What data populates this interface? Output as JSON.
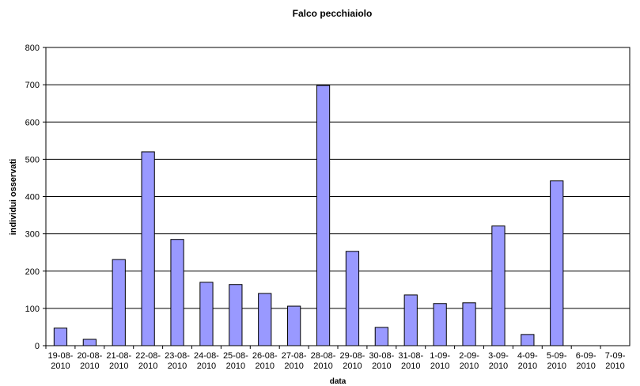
{
  "chart_data": {
    "type": "bar",
    "title": "Falco pecchiaiolo",
    "xlabel": "data",
    "ylabel": "individui osservati",
    "categories": [
      "19-08-2010",
      "20-08-2010",
      "21-08-2010",
      "22-08-2010",
      "23-08-2010",
      "24-08-2010",
      "25-08-2010",
      "26-08-2010",
      "27-08-2010",
      "28-08-2010",
      "29-08-2010",
      "30-08-2010",
      "31-08-2010",
      "1-09-2010",
      "2-09-2010",
      "3-09-2010",
      "4-09-2010",
      "5-09-2010",
      "6-09-2010",
      "7-09-2010"
    ],
    "values": [
      47,
      17,
      231,
      520,
      285,
      170,
      164,
      140,
      106,
      698,
      253,
      49,
      136,
      113,
      115,
      321,
      30,
      442,
      0,
      0
    ],
    "color": "#9999ff",
    "ylim": [
      0,
      800
    ],
    "yticks": [
      0,
      100,
      200,
      300,
      400,
      500,
      600,
      700,
      800
    ],
    "grid": true
  }
}
